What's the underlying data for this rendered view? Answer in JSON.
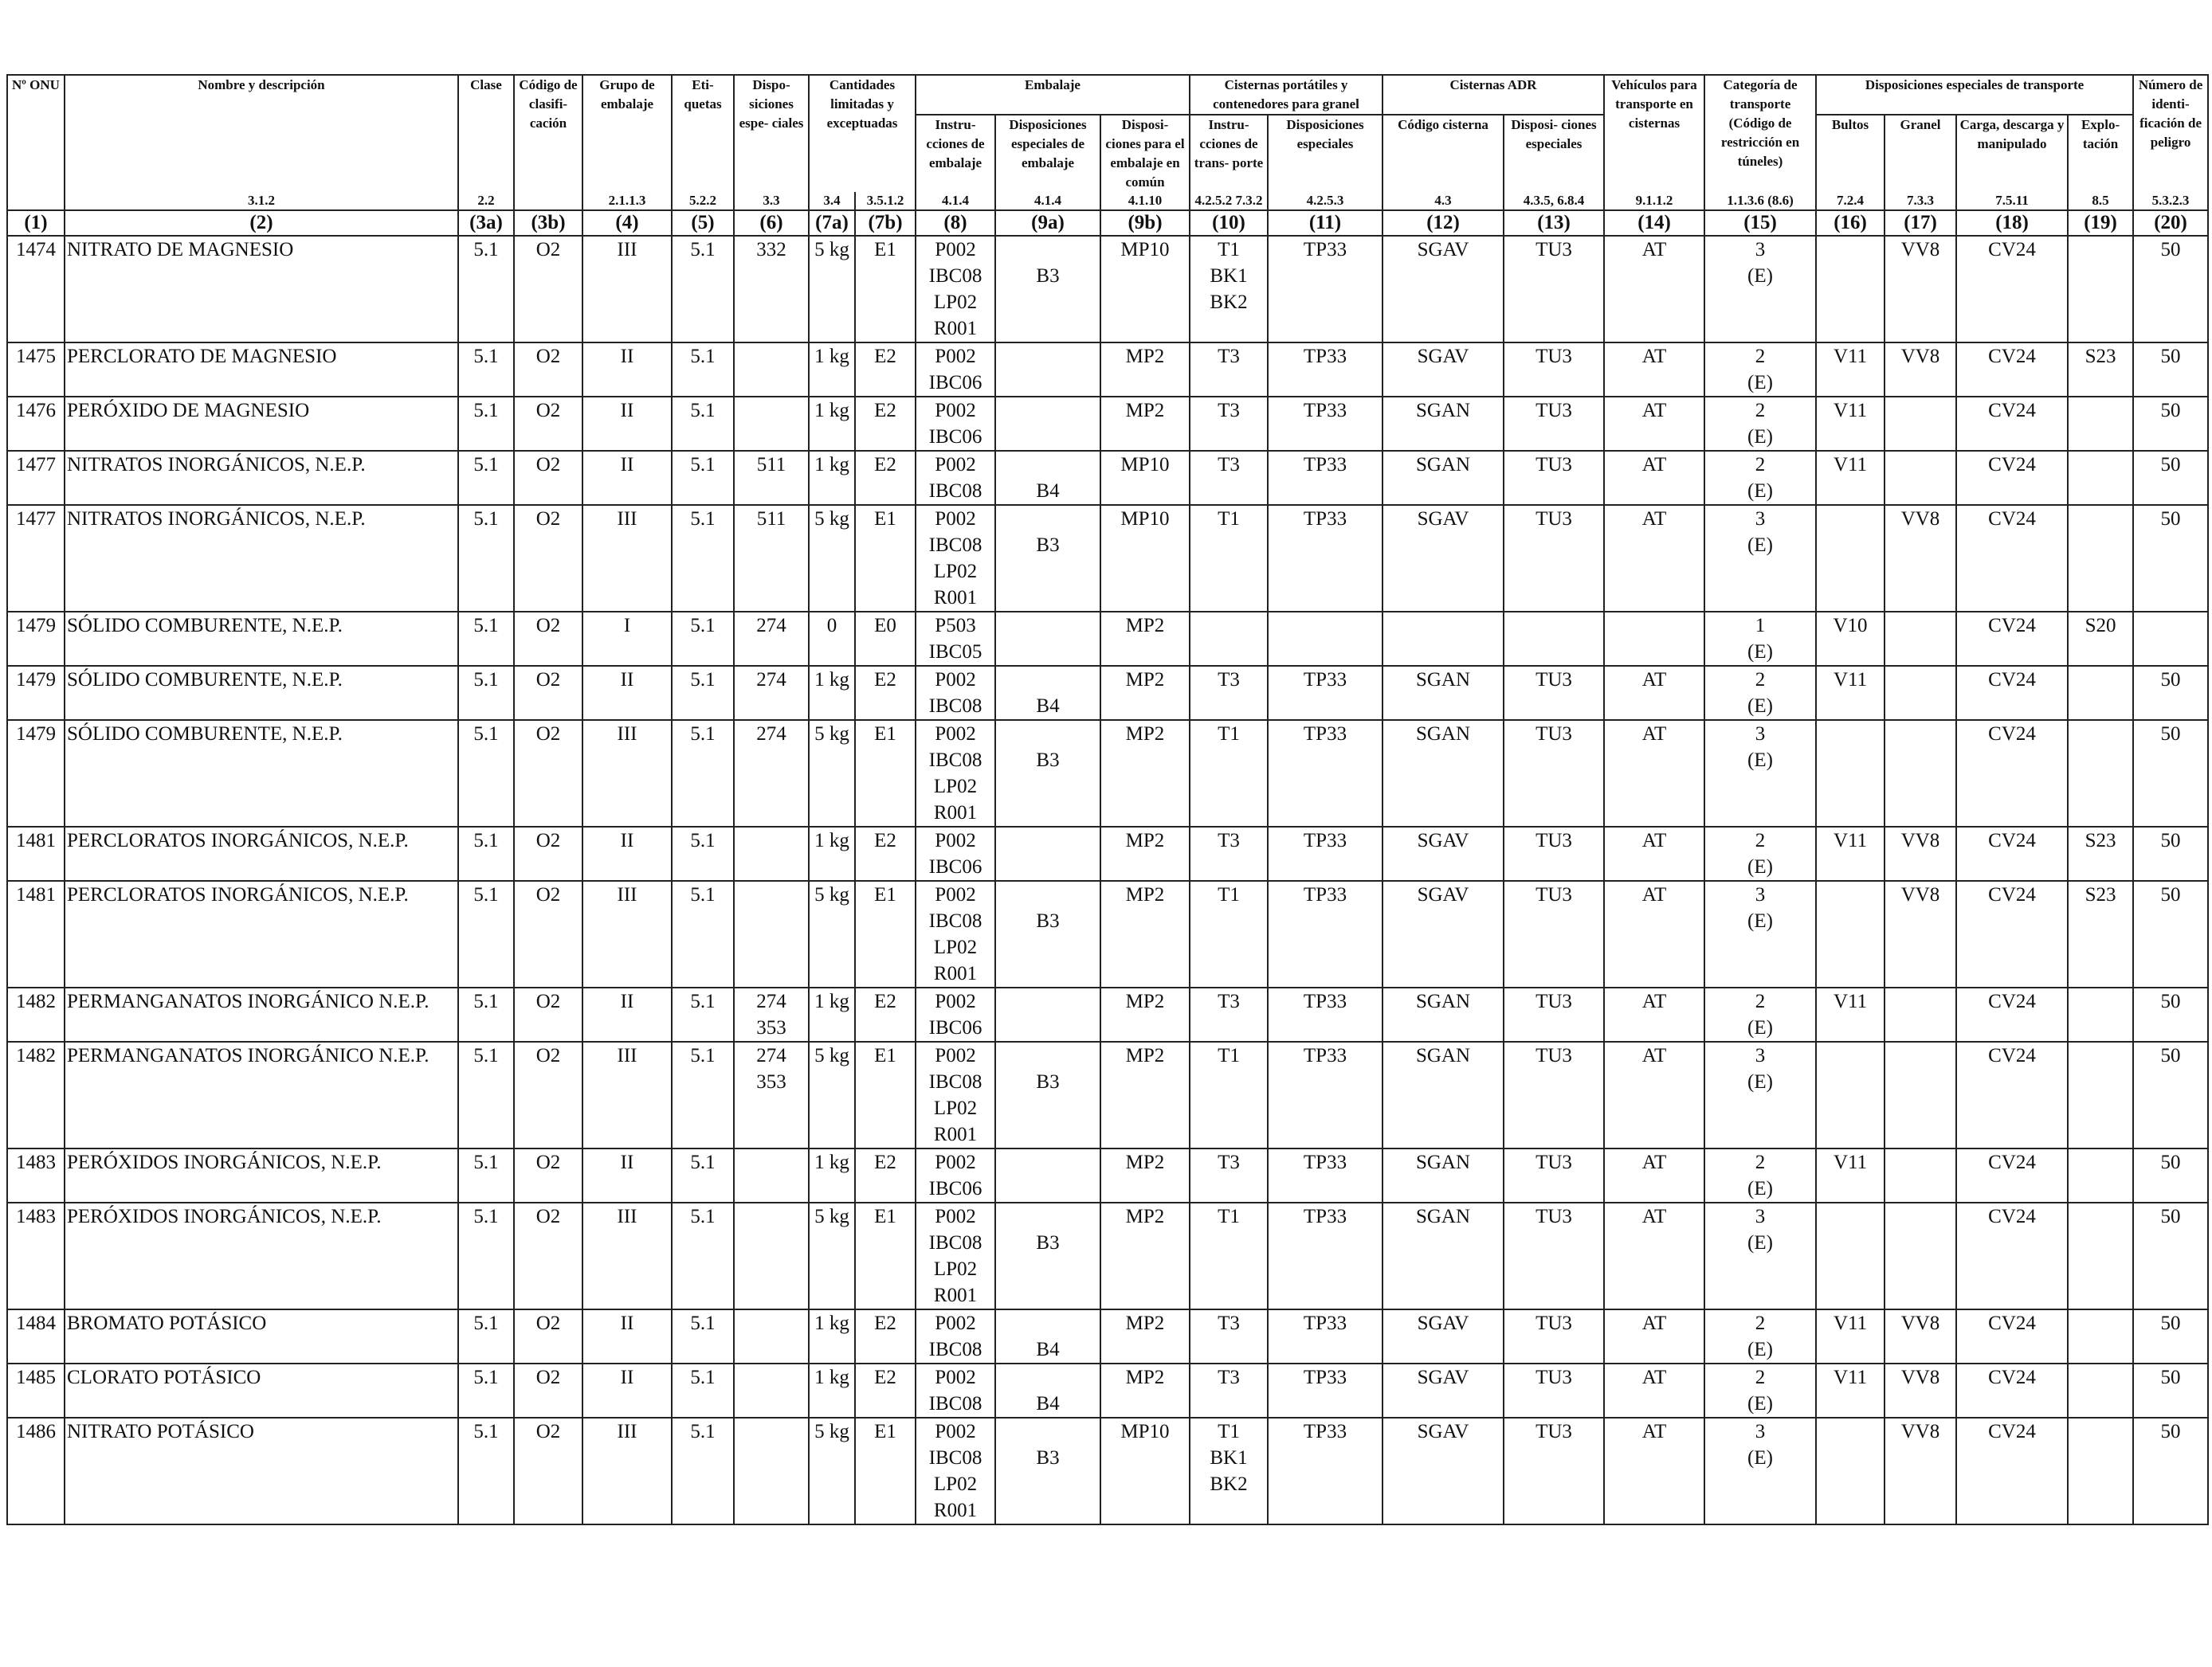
{
  "header": {
    "un": "Nº ONU",
    "name": "Nombre y descripción",
    "class": "Clase",
    "code": "Código de clasifi- cación",
    "pg": "Grupo de embalaje",
    "labels": "Eti- quetas",
    "sp": "Dispo- siciones espe- ciales",
    "lq": "Cantidades limitadas y exceptuadas",
    "packaging": "Embalaje",
    "pi": "Instru- cciones de embalaje",
    "spp": "Disposiciones especiales de embalaje",
    "mp": "Disposi- ciones para el embalaje en común",
    "portable": "Cisternas portátiles y contenedores para granel",
    "ti": "Instru- cciones de trans- porte",
    "tsp": "Disposiciones especiales",
    "adr": "Cisternas ADR",
    "tc": "Código cisterna",
    "tcsp": "Disposi- ciones especiales",
    "veh": "Vehículos para transporte en cisternas",
    "cat": "Categoría de transporte (Código de restricción en túneles)",
    "special": "Disposiciones especiales de transporte",
    "bultos": "Bultos",
    "granel": "Granel",
    "carga": "Carga, descarga y manipulado",
    "explo": "Explo- tación",
    "hin": "Número de identi- ficación de peligro"
  },
  "refs": [
    "",
    "3.1.2",
    "2.2",
    "",
    "2.1.1.3",
    "5.2.2",
    "3.3",
    "3.4",
    "3.5.1.2",
    "4.1.4",
    "4.1.4",
    "4.1.10",
    "4.2.5.2 7.3.2",
    "4.2.5.3",
    "4.3",
    "4.3.5, 6.8.4",
    "9.1.1.2",
    "1.1.3.6 (8.6)",
    "7.2.4",
    "7.3.3",
    "7.5.11",
    "8.5",
    "5.3.2.3"
  ],
  "colnums": [
    "(1)",
    "(2)",
    "(3a)",
    "(3b)",
    "(4)",
    "(5)",
    "(6)",
    "(7a)",
    "(7b)",
    "(8)",
    "(9a)",
    "(9b)",
    "(10)",
    "(11)",
    "(12)",
    "(13)",
    "(14)",
    "(15)",
    "(16)",
    "(17)",
    "(18)",
    "(19)",
    "(20)"
  ],
  "rows": [
    {
      "c1": "1474",
      "c2": "NITRATO DE MAGNESIO",
      "c3a": "5.1",
      "c3b": "O2",
      "c4": "III",
      "c5": "5.1",
      "c6": "332",
      "c7a": "5 kg",
      "c7b": "E1",
      "c8": [
        "P002",
        "IBC08",
        "LP02",
        "R001"
      ],
      "c9a": "B3",
      "c9b": "MP10",
      "c10": [
        "T1",
        "BK1",
        "BK2"
      ],
      "c11": "TP33",
      "c12": "SGAV",
      "c13": "TU3",
      "c14": "AT",
      "c15": [
        "3",
        "(E)"
      ],
      "c16": "",
      "c17": "VV8",
      "c18": "CV24",
      "c19": "",
      "c20": "50"
    },
    {
      "c1": "1475",
      "c2": "PERCLORATO DE MAGNESIO",
      "c3a": "5.1",
      "c3b": "O2",
      "c4": "II",
      "c5": "5.1",
      "c6": "",
      "c7a": "1 kg",
      "c7b": "E2",
      "c8": [
        "P002",
        "IBC06"
      ],
      "c9a": "",
      "c9b": "MP2",
      "c10": [
        "T3"
      ],
      "c11": "TP33",
      "c12": "SGAV",
      "c13": "TU3",
      "c14": "AT",
      "c15": [
        "2",
        "(E)"
      ],
      "c16": "V11",
      "c17": "VV8",
      "c18": "CV24",
      "c19": "S23",
      "c20": "50"
    },
    {
      "c1": "1476",
      "c2": "PERÓXIDO DE MAGNESIO",
      "c3a": "5.1",
      "c3b": "O2",
      "c4": "II",
      "c5": "5.1",
      "c6": "",
      "c7a": "1 kg",
      "c7b": "E2",
      "c8": [
        "P002",
        "IBC06"
      ],
      "c9a": "",
      "c9b": "MP2",
      "c10": [
        "T3"
      ],
      "c11": "TP33",
      "c12": "SGAN",
      "c13": "TU3",
      "c14": "AT",
      "c15": [
        "2",
        "(E)"
      ],
      "c16": "V11",
      "c17": "",
      "c18": "CV24",
      "c19": "",
      "c20": "50"
    },
    {
      "c1": "1477",
      "c2": "NITRATOS INORGÁNICOS, N.E.P.",
      "c3a": "5.1",
      "c3b": "O2",
      "c4": "II",
      "c5": "5.1",
      "c6": "511",
      "c7a": "1 kg",
      "c7b": "E2",
      "c8": [
        "P002",
        "IBC08"
      ],
      "c9a": "B4",
      "c9b": "MP10",
      "c10": [
        "T3"
      ],
      "c11": "TP33",
      "c12": "SGAN",
      "c13": "TU3",
      "c14": "AT",
      "c15": [
        "2",
        "(E)"
      ],
      "c16": "V11",
      "c17": "",
      "c18": "CV24",
      "c19": "",
      "c20": "50"
    },
    {
      "c1": "1477",
      "c2": "NITRATOS INORGÁNICOS, N.E.P.",
      "c3a": "5.1",
      "c3b": "O2",
      "c4": "III",
      "c5": "5.1",
      "c6": "511",
      "c7a": "5 kg",
      "c7b": "E1",
      "c8": [
        "P002",
        "IBC08",
        "LP02",
        "R001"
      ],
      "c9a": "B3",
      "c9b": "MP10",
      "c10": [
        "T1"
      ],
      "c11": "TP33",
      "c12": "SGAV",
      "c13": "TU3",
      "c14": "AT",
      "c15": [
        "3",
        "(E)"
      ],
      "c16": "",
      "c17": "VV8",
      "c18": "CV24",
      "c19": "",
      "c20": "50"
    },
    {
      "c1": "1479",
      "c2": "SÓLIDO COMBURENTE, N.E.P.",
      "c3a": "5.1",
      "c3b": "O2",
      "c4": "I",
      "c5": "5.1",
      "c6": "274",
      "c7a": "0",
      "c7b": "E0",
      "c8": [
        "P503",
        "IBC05"
      ],
      "c9a": "",
      "c9b": "MP2",
      "c10": [],
      "c11": "",
      "c12": "",
      "c13": "",
      "c14": "",
      "c15": [
        "1",
        "(E)"
      ],
      "c16": "V10",
      "c17": "",
      "c18": "CV24",
      "c19": "S20",
      "c20": ""
    },
    {
      "c1": "1479",
      "c2": "SÓLIDO COMBURENTE, N.E.P.",
      "c3a": "5.1",
      "c3b": "O2",
      "c4": "II",
      "c5": "5.1",
      "c6": "274",
      "c7a": "1 kg",
      "c7b": "E2",
      "c8": [
        "P002",
        "IBC08"
      ],
      "c9a": "B4",
      "c9b": "MP2",
      "c10": [
        "T3"
      ],
      "c11": "TP33",
      "c12": "SGAN",
      "c13": "TU3",
      "c14": "AT",
      "c15": [
        "2",
        "(E)"
      ],
      "c16": "V11",
      "c17": "",
      "c18": "CV24",
      "c19": "",
      "c20": "50"
    },
    {
      "c1": "1479",
      "c2": "SÓLIDO COMBURENTE, N.E.P.",
      "c3a": "5.1",
      "c3b": "O2",
      "c4": "III",
      "c5": "5.1",
      "c6": "274",
      "c7a": "5 kg",
      "c7b": "E1",
      "c8": [
        "P002",
        "IBC08",
        "LP02",
        "R001"
      ],
      "c9a": "B3",
      "c9b": "MP2",
      "c10": [
        "T1"
      ],
      "c11": "TP33",
      "c12": "SGAN",
      "c13": "TU3",
      "c14": "AT",
      "c15": [
        "3",
        "(E)"
      ],
      "c16": "",
      "c17": "",
      "c18": "CV24",
      "c19": "",
      "c20": "50"
    },
    {
      "c1": "1481",
      "c2": "PERCLORATOS INORGÁNICOS, N.E.P.",
      "c3a": "5.1",
      "c3b": "O2",
      "c4": "II",
      "c5": "5.1",
      "c6": "",
      "c7a": "1 kg",
      "c7b": "E2",
      "c8": [
        "P002",
        "IBC06"
      ],
      "c9a": "",
      "c9b": "MP2",
      "c10": [
        "T3"
      ],
      "c11": "TP33",
      "c12": "SGAV",
      "c13": "TU3",
      "c14": "AT",
      "c15": [
        "2",
        "(E)"
      ],
      "c16": "V11",
      "c17": "VV8",
      "c18": "CV24",
      "c19": "S23",
      "c20": "50"
    },
    {
      "c1": "1481",
      "c2": "PERCLORATOS INORGÁNICOS, N.E.P.",
      "c3a": "5.1",
      "c3b": "O2",
      "c4": "III",
      "c5": "5.1",
      "c6": "",
      "c7a": "5 kg",
      "c7b": "E1",
      "c8": [
        "P002",
        "IBC08",
        "LP02",
        "R001"
      ],
      "c9a": "B3",
      "c9b": "MP2",
      "c10": [
        "T1"
      ],
      "c11": "TP33",
      "c12": "SGAV",
      "c13": "TU3",
      "c14": "AT",
      "c15": [
        "3",
        "(E)"
      ],
      "c16": "",
      "c17": "VV8",
      "c18": "CV24",
      "c19": "S23",
      "c20": "50"
    },
    {
      "c1": "1482",
      "c2": "PERMANGANATOS INORGÁNICO N.E.P.",
      "c3a": "5.1",
      "c3b": "O2",
      "c4": "II",
      "c5": "5.1",
      "c6": [
        "274",
        "353"
      ],
      "c7a": "1 kg",
      "c7b": "E2",
      "c8": [
        "P002",
        "IBC06"
      ],
      "c9a": "",
      "c9b": "MP2",
      "c10": [
        "T3"
      ],
      "c11": "TP33",
      "c12": "SGAN",
      "c13": "TU3",
      "c14": "AT",
      "c15": [
        "2",
        "(E)"
      ],
      "c16": "V11",
      "c17": "",
      "c18": "CV24",
      "c19": "",
      "c20": "50"
    },
    {
      "c1": "1482",
      "c2": "PERMANGANATOS INORGÁNICO N.E.P.",
      "c3a": "5.1",
      "c3b": "O2",
      "c4": "III",
      "c5": "5.1",
      "c6": [
        "274",
        "353"
      ],
      "c7a": "5 kg",
      "c7b": "E1",
      "c8": [
        "P002",
        "IBC08",
        "LP02",
        "R001"
      ],
      "c9a": "B3",
      "c9b": "MP2",
      "c10": [
        "T1"
      ],
      "c11": "TP33",
      "c12": "SGAN",
      "c13": "TU3",
      "c14": "AT",
      "c15": [
        "3",
        "(E)"
      ],
      "c16": "",
      "c17": "",
      "c18": "CV24",
      "c19": "",
      "c20": "50"
    },
    {
      "c1": "1483",
      "c2": "PERÓXIDOS INORGÁNICOS, N.E.P.",
      "c3a": "5.1",
      "c3b": "O2",
      "c4": "II",
      "c5": "5.1",
      "c6": "",
      "c7a": "1 kg",
      "c7b": "E2",
      "c8": [
        "P002",
        "IBC06"
      ],
      "c9a": "",
      "c9b": "MP2",
      "c10": [
        "T3"
      ],
      "c11": "TP33",
      "c12": "SGAN",
      "c13": "TU3",
      "c14": "AT",
      "c15": [
        "2",
        "(E)"
      ],
      "c16": "V11",
      "c17": "",
      "c18": "CV24",
      "c19": "",
      "c20": "50"
    },
    {
      "c1": "1483",
      "c2": "PERÓXIDOS INORGÁNICOS, N.E.P.",
      "c3a": "5.1",
      "c3b": "O2",
      "c4": "III",
      "c5": "5.1",
      "c6": "",
      "c7a": "5 kg",
      "c7b": "E1",
      "c8": [
        "P002",
        "IBC08",
        "LP02",
        "R001"
      ],
      "c9a": "B3",
      "c9b": "MP2",
      "c10": [
        "T1"
      ],
      "c11": "TP33",
      "c12": "SGAN",
      "c13": "TU3",
      "c14": "AT",
      "c15": [
        "3",
        "(E)"
      ],
      "c16": "",
      "c17": "",
      "c18": "CV24",
      "c19": "",
      "c20": "50"
    },
    {
      "c1": "1484",
      "c2": "BROMATO POTÁSICO",
      "c3a": "5.1",
      "c3b": "O2",
      "c4": "II",
      "c5": "5.1",
      "c6": "",
      "c7a": "1 kg",
      "c7b": "E2",
      "c8": [
        "P002",
        "IBC08"
      ],
      "c9a": "B4",
      "c9b": "MP2",
      "c10": [
        "T3"
      ],
      "c11": "TP33",
      "c12": "SGAV",
      "c13": "TU3",
      "c14": "AT",
      "c15": [
        "2",
        "(E)"
      ],
      "c16": "V11",
      "c17": "VV8",
      "c18": "CV24",
      "c19": "",
      "c20": "50"
    },
    {
      "c1": "1485",
      "c2": "CLORATO POTÁSICO",
      "c3a": "5.1",
      "c3b": "O2",
      "c4": "II",
      "c5": "5.1",
      "c6": "",
      "c7a": "1 kg",
      "c7b": "E2",
      "c8": [
        "P002",
        "IBC08"
      ],
      "c9a": "B4",
      "c9b": "MP2",
      "c10": [
        "T3"
      ],
      "c11": "TP33",
      "c12": "SGAV",
      "c13": "TU3",
      "c14": "AT",
      "c15": [
        "2",
        "(E)"
      ],
      "c16": "V11",
      "c17": "VV8",
      "c18": "CV24",
      "c19": "",
      "c20": "50"
    },
    {
      "c1": "1486",
      "c2": "NITRATO POTÁSICO",
      "c3a": "5.1",
      "c3b": "O2",
      "c4": "III",
      "c5": "5.1",
      "c6": "",
      "c7a": "5 kg",
      "c7b": "E1",
      "c8": [
        "P002",
        "IBC08",
        "LP02",
        "R001"
      ],
      "c9a": "B3",
      "c9b": "MP10",
      "c10": [
        "T1",
        "BK1",
        "BK2"
      ],
      "c11": "TP33",
      "c12": "SGAV",
      "c13": "TU3",
      "c14": "AT",
      "c15": [
        "3",
        "(E)"
      ],
      "c16": "",
      "c17": "VV8",
      "c18": "CV24",
      "c19": "",
      "c20": "50"
    }
  ]
}
